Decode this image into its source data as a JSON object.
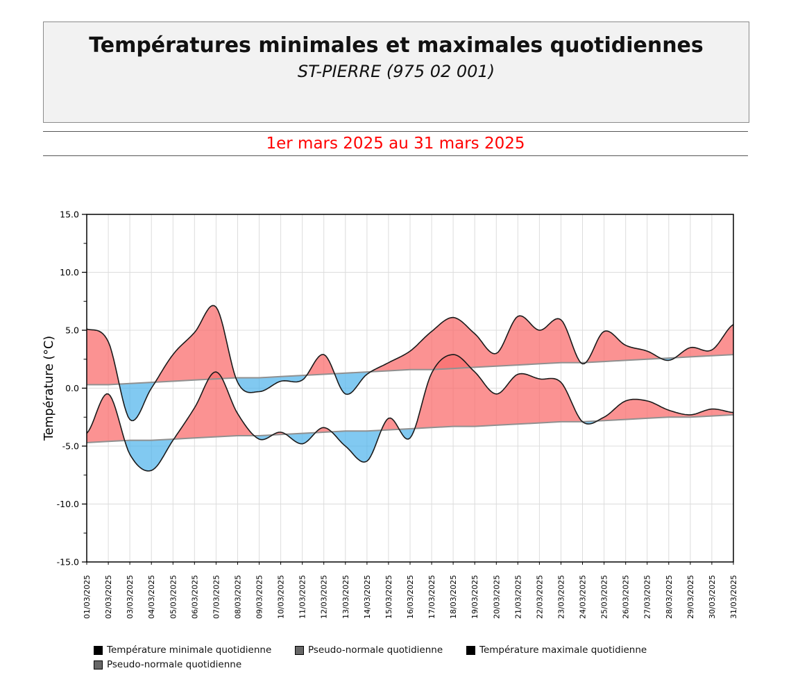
{
  "header": {
    "title": "Températures minimales et maximales quotidiennes",
    "subtitle": "ST-PIERRE (975 02 001)"
  },
  "period": "1er mars 2025 au 31 mars 2025",
  "colors": {
    "above_normal_fill": "#FA6E6E",
    "below_normal_fill": "#50B4EB",
    "curve_line": "#1a1a1a",
    "normal_line": "#909090",
    "grid": "#dcdcdc",
    "axis": "#000000",
    "period_text": "#FF0000",
    "header_bg": "#F2F2F2"
  },
  "chart_data": {
    "type": "area",
    "title": "Températures minimales et maximales quotidiennes — ST-PIERRE (975 02 001)",
    "xlabel": "",
    "ylabel": "Température (°C)",
    "ylim": [
      -15,
      15
    ],
    "grid": true,
    "legend_position": "bottom",
    "x_labels": [
      "01/03/2025",
      "02/03/2025",
      "03/03/2025",
      "04/03/2025",
      "05/03/2025",
      "06/03/2025",
      "07/03/2025",
      "08/03/2025",
      "09/03/2025",
      "10/03/2025",
      "11/03/2025",
      "12/03/2025",
      "13/03/2025",
      "14/03/2025",
      "15/03/2025",
      "16/03/2025",
      "17/03/2025",
      "18/03/2025",
      "19/03/2025",
      "20/03/2025",
      "21/03/2025",
      "22/03/2025",
      "23/03/2025",
      "24/03/2025",
      "25/03/2025",
      "26/03/2025",
      "27/03/2025",
      "28/03/2025",
      "29/03/2025",
      "30/03/2025",
      "31/03/2025"
    ],
    "yticks": [
      {
        "v": 15,
        "label": "15.0"
      },
      {
        "v": 10,
        "label": "10.0"
      },
      {
        "v": 5,
        "label": "5.0"
      },
      {
        "v": 0,
        "label": "0.0"
      },
      {
        "v": -5,
        "label": "-5.0"
      },
      {
        "v": -10,
        "label": "-10.0"
      },
      {
        "v": -15,
        "label": "-15.0"
      }
    ],
    "series": [
      {
        "name": "Température minimale quotidienne",
        "role": "temperature_min",
        "values": [
          -3.9,
          -0.5,
          -5.7,
          -7.1,
          -4.5,
          -1.7,
          1.4,
          -2.2,
          -4.4,
          -3.8,
          -4.8,
          -3.4,
          -5.0,
          -6.3,
          -2.6,
          -4.3,
          1.3,
          2.9,
          1.4,
          -0.5,
          1.2,
          0.8,
          0.5,
          -2.9,
          -2.5,
          -1.1,
          -1.1,
          -1.9,
          -2.3,
          -1.8,
          -2.1
        ]
      },
      {
        "name": "Pseudo-normale quotidienne",
        "role": "pseudo_normale_min",
        "values": [
          -4.7,
          -4.6,
          -4.5,
          -4.5,
          -4.4,
          -4.3,
          -4.2,
          -4.1,
          -4.1,
          -4.0,
          -3.9,
          -3.8,
          -3.7,
          -3.7,
          -3.6,
          -3.5,
          -3.4,
          -3.3,
          -3.3,
          -3.2,
          -3.1,
          -3.0,
          -2.9,
          -2.9,
          -2.8,
          -2.7,
          -2.6,
          -2.5,
          -2.5,
          -2.4,
          -2.3
        ]
      },
      {
        "name": "Température maximale quotidienne",
        "role": "temperature_max",
        "values": [
          5.1,
          4.0,
          -2.7,
          0.0,
          2.9,
          4.8,
          7.0,
          0.5,
          -0.3,
          0.6,
          0.7,
          2.9,
          -0.5,
          1.2,
          2.2,
          3.2,
          4.9,
          6.1,
          4.7,
          3.0,
          6.2,
          5.0,
          5.9,
          2.1,
          4.9,
          3.7,
          3.2,
          2.4,
          3.5,
          3.3,
          5.5
        ]
      },
      {
        "name": "Pseudo-normale quotidienne",
        "role": "pseudo_normale_max",
        "values": [
          0.3,
          0.3,
          0.4,
          0.5,
          0.6,
          0.7,
          0.8,
          0.9,
          0.9,
          1.0,
          1.1,
          1.2,
          1.3,
          1.4,
          1.5,
          1.6,
          1.6,
          1.7,
          1.8,
          1.9,
          2.0,
          2.1,
          2.2,
          2.2,
          2.3,
          2.4,
          2.5,
          2.6,
          2.7,
          2.8,
          2.9
        ]
      }
    ]
  },
  "legend": {
    "items": [
      {
        "label": "Température minimale quotidienne",
        "swatch": "#000000",
        "name": "legend-item-temp-min"
      },
      {
        "label": "Pseudo-normale quotidienne",
        "swatch": "#666666",
        "name": "legend-item-pseudo-normale-min"
      },
      {
        "label": "Température maximale quotidienne",
        "swatch": "#000000",
        "name": "legend-item-temp-max"
      },
      {
        "label": "Pseudo-normale quotidienne",
        "swatch": "#666666",
        "name": "legend-item-pseudo-normale-max"
      }
    ]
  }
}
